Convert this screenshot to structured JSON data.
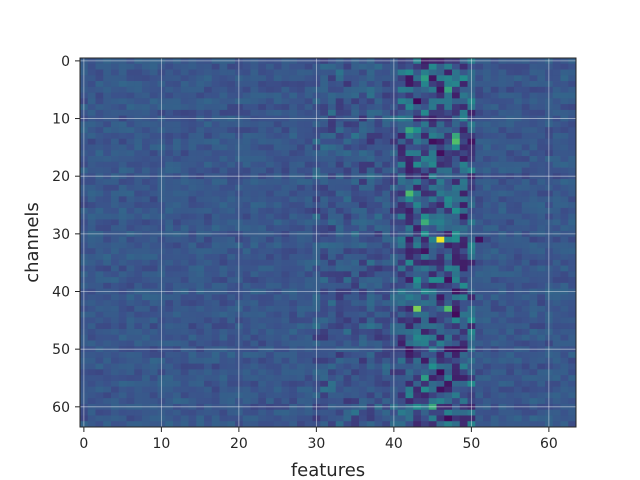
{
  "chart_data": {
    "type": "heatmap",
    "title": "",
    "xlabel": "features",
    "ylabel": "channels",
    "rows": 64,
    "cols": 64,
    "xlim": [
      -0.5,
      63.5
    ],
    "ylim": [
      63.5,
      -0.5
    ],
    "x_ticks": [
      0,
      10,
      20,
      30,
      40,
      50,
      60
    ],
    "y_ticks": [
      0,
      10,
      20,
      30,
      40,
      50,
      60
    ],
    "grid": true,
    "colormap": "viridis",
    "colormap_colors": [
      "#440154",
      "#3b528b",
      "#21918c",
      "#5ec962",
      "#fde725"
    ],
    "value_range": [
      0,
      1
    ],
    "background_level": 0.27,
    "hotspots": [
      {
        "x": 46,
        "y": 31,
        "value": 0.98
      },
      {
        "x": 43,
        "y": 43,
        "value": 0.8
      },
      {
        "x": 47,
        "y": 43,
        "value": 0.7
      },
      {
        "x": 42,
        "y": 23,
        "value": 0.68
      },
      {
        "x": 48,
        "y": 14,
        "value": 0.7
      },
      {
        "x": 42,
        "y": 12,
        "value": 0.6
      },
      {
        "x": 44,
        "y": 28,
        "value": 0.62
      },
      {
        "x": 45,
        "y": 60,
        "value": 0.6
      },
      {
        "x": 47,
        "y": 5,
        "value": 0.58
      },
      {
        "x": 44,
        "y": 3,
        "value": 0.55
      },
      {
        "x": 48,
        "y": 13,
        "value": 0.6
      },
      {
        "x": 44,
        "y": 55,
        "value": 0.55
      },
      {
        "x": 43,
        "y": 38,
        "value": 0.5
      }
    ],
    "low_spots": [
      {
        "x": 43,
        "y": 7,
        "value": 0.02
      },
      {
        "x": 48,
        "y": 44,
        "value": 0.03
      },
      {
        "x": 47,
        "y": 38,
        "value": 0.05
      },
      {
        "x": 48,
        "y": 50,
        "value": 0.05
      },
      {
        "x": 46,
        "y": 16,
        "value": 0.04
      },
      {
        "x": 44,
        "y": 33,
        "value": 0.06
      },
      {
        "x": 51,
        "y": 31,
        "value": 0.05
      },
      {
        "x": 46,
        "y": 57,
        "value": 0.05
      }
    ]
  }
}
